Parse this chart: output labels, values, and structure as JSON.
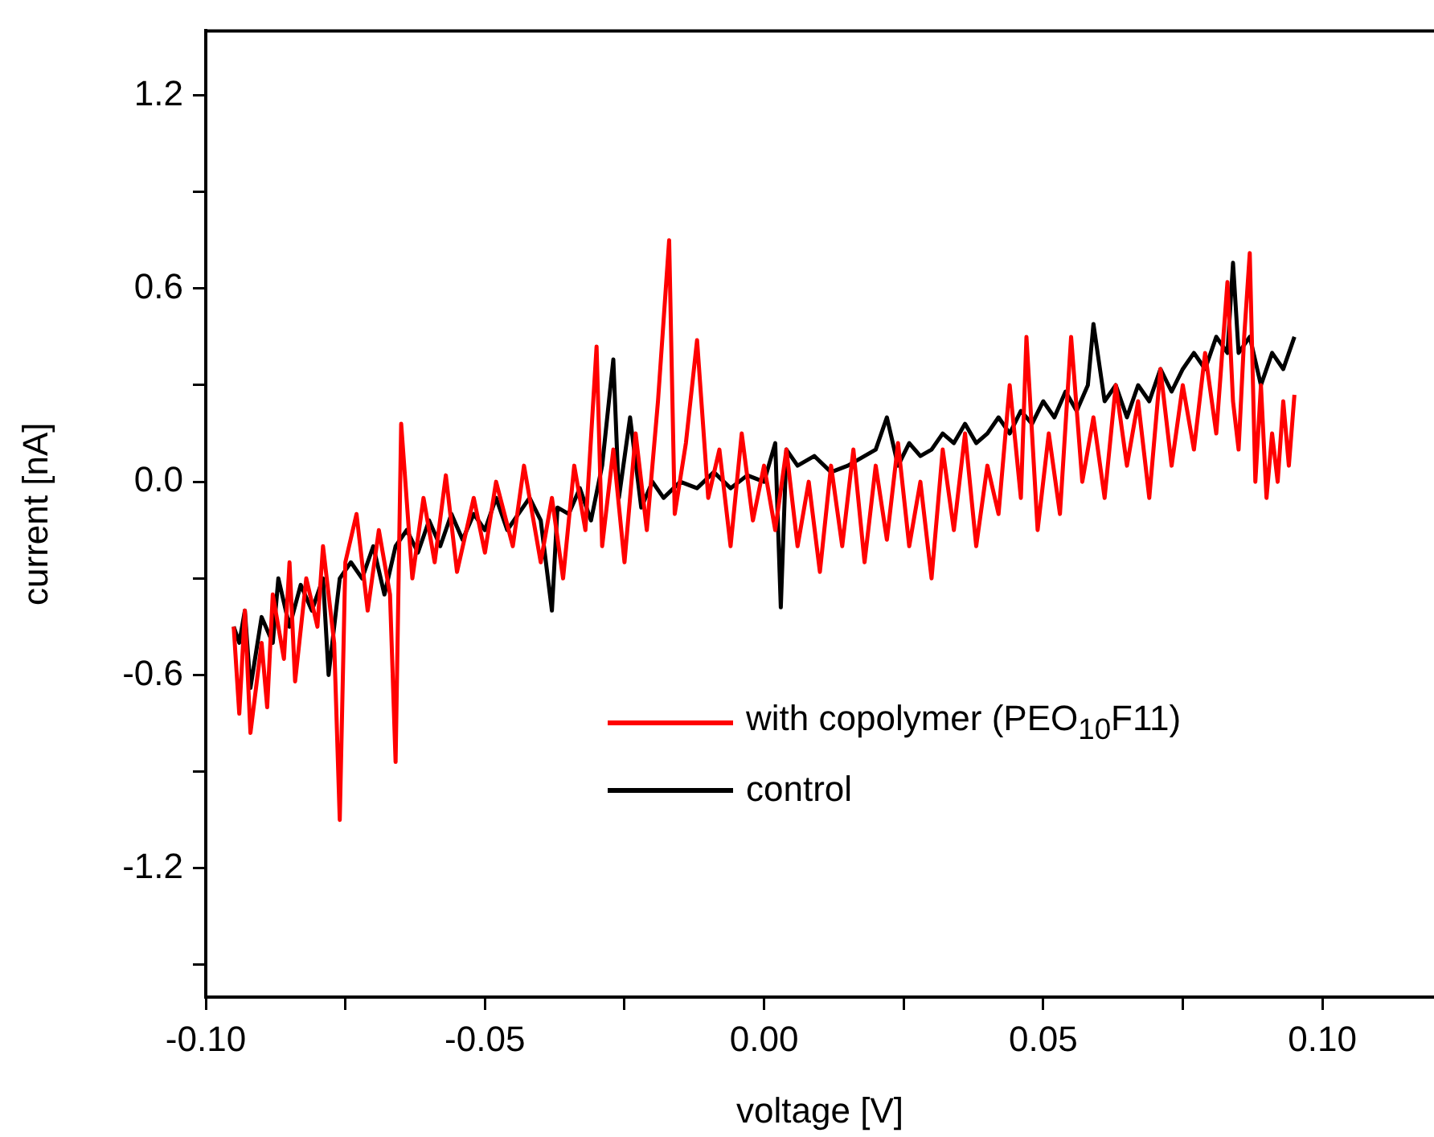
{
  "chart_data": {
    "type": "line",
    "xlabel": "voltage [V]",
    "ylabel": "current [nA]",
    "xlim": [
      -0.1,
      0.12
    ],
    "xticks": [
      {
        "value": -0.1,
        "label": "-0.10"
      },
      {
        "value": -0.075,
        "label": null
      },
      {
        "value": -0.05,
        "label": "-0.05"
      },
      {
        "value": -0.025,
        "label": null
      },
      {
        "value": 0,
        "label": "0.00"
      },
      {
        "value": 0.025,
        "label": null
      },
      0.05,
      {
        "value": 0.075,
        "label": null
      },
      {
        "value": 0.1,
        "label": "0.10"
      }
    ],
    "ylim": [
      -1.6,
      1.4
    ],
    "yticks": [
      {
        "value": -1.5,
        "label": null
      },
      -1.2,
      {
        "value": -0.9,
        "label": null
      },
      -0.6,
      {
        "value": -0.3,
        "label": null
      },
      {
        "value": 0,
        "label": "0.0"
      },
      {
        "value": 0.3,
        "label": null
      },
      0.6,
      {
        "value": 0.9,
        "label": null
      },
      1.2
    ],
    "grid": false,
    "legend": "bottom right",
    "marker": "none",
    "line_style": "solid",
    "series": [
      {
        "name": "with copolymer (PEO$_{10}$F11)",
        "color": "#ff0000",
        "x": [
          -0.095,
          -0.094,
          -0.093,
          -0.092,
          -0.09,
          -0.089,
          -0.088,
          -0.086,
          -0.085,
          -0.084,
          -0.082,
          -0.08,
          -0.079,
          -0.077,
          -0.076,
          -0.075,
          -0.073,
          -0.071,
          -0.069,
          -0.067,
          -0.066,
          -0.065,
          -0.063,
          -0.061,
          -0.059,
          -0.057,
          -0.055,
          -0.052,
          -0.05,
          -0.048,
          -0.045,
          -0.043,
          -0.04,
          -0.038,
          -0.036,
          -0.034,
          -0.032,
          -0.03,
          -0.029,
          -0.027,
          -0.025,
          -0.023,
          -0.021,
          -0.019,
          -0.017,
          -0.016,
          -0.014,
          -0.012,
          -0.01,
          -0.008,
          -0.006,
          -0.004,
          -0.002,
          0,
          0.002,
          0.004,
          0.006,
          0.008,
          0.01,
          0.012,
          0.014,
          0.016,
          0.018,
          0.02,
          0.022,
          0.024,
          0.026,
          0.028,
          0.03,
          0.032,
          0.034,
          0.036,
          0.038,
          0.04,
          0.042,
          0.044,
          0.046,
          0.047,
          0.049,
          0.051,
          0.053,
          0.055,
          0.057,
          0.059,
          0.061,
          0.063,
          0.065,
          0.067,
          0.069,
          0.071,
          0.073,
          0.075,
          0.077,
          0.079,
          0.081,
          0.083,
          0.084,
          0.085,
          0.086,
          0.087,
          0.088,
          0.089,
          0.09,
          0.091,
          0.092,
          0.093,
          0.094,
          0.095
        ],
        "values": [
          -0.45,
          -0.72,
          -0.4,
          -0.78,
          -0.5,
          -0.7,
          -0.35,
          -0.55,
          -0.25,
          -0.62,
          -0.3,
          -0.45,
          -0.2,
          -0.5,
          -1.05,
          -0.25,
          -0.1,
          -0.4,
          -0.15,
          -0.35,
          -0.87,
          0.18,
          -0.3,
          -0.05,
          -0.25,
          0.02,
          -0.28,
          -0.05,
          -0.22,
          0,
          -0.2,
          0.05,
          -0.25,
          -0.05,
          -0.3,
          0.05,
          -0.15,
          0.42,
          -0.2,
          0.1,
          -0.25,
          0.15,
          -0.15,
          0.25,
          0.75,
          -0.1,
          0.12,
          0.44,
          -0.05,
          0.1,
          -0.2,
          0.15,
          -0.12,
          0.05,
          -0.15,
          0.1,
          -0.2,
          0,
          -0.28,
          0.05,
          -0.2,
          0.1,
          -0.25,
          0.05,
          -0.18,
          0.12,
          -0.2,
          0,
          -0.3,
          0.1,
          -0.15,
          0.15,
          -0.2,
          0.05,
          -0.1,
          0.3,
          -0.05,
          0.45,
          -0.15,
          0.15,
          -0.1,
          0.45,
          0,
          0.2,
          -0.05,
          0.3,
          0.05,
          0.25,
          -0.05,
          0.35,
          0.05,
          0.3,
          0.1,
          0.4,
          0.15,
          0.62,
          0.25,
          0.1,
          0.45,
          0.71,
          0,
          0.3,
          -0.05,
          0.15,
          0,
          0.25,
          0.05,
          0.27
        ]
      },
      {
        "name": "control",
        "color": "#000000",
        "x": [
          -0.095,
          -0.094,
          -0.093,
          -0.092,
          -0.09,
          -0.088,
          -0.087,
          -0.085,
          -0.083,
          -0.081,
          -0.079,
          -0.078,
          -0.076,
          -0.074,
          -0.072,
          -0.07,
          -0.068,
          -0.066,
          -0.064,
          -0.062,
          -0.06,
          -0.058,
          -0.056,
          -0.054,
          -0.052,
          -0.05,
          -0.048,
          -0.046,
          -0.044,
          -0.042,
          -0.04,
          -0.038,
          -0.037,
          -0.035,
          -0.033,
          -0.031,
          -0.029,
          -0.027,
          -0.026,
          -0.024,
          -0.022,
          -0.02,
          -0.018,
          -0.015,
          -0.012,
          -0.009,
          -0.006,
          -0.003,
          0,
          0.002,
          0.003,
          0.004,
          0.006,
          0.009,
          0.012,
          0.015,
          0.018,
          0.02,
          0.022,
          0.024,
          0.026,
          0.028,
          0.03,
          0.032,
          0.034,
          0.036,
          0.038,
          0.04,
          0.042,
          0.044,
          0.046,
          0.048,
          0.05,
          0.052,
          0.054,
          0.056,
          0.058,
          0.059,
          0.061,
          0.063,
          0.065,
          0.067,
          0.069,
          0.071,
          0.073,
          0.075,
          0.077,
          0.079,
          0.081,
          0.083,
          0.084,
          0.085,
          0.087,
          0.089,
          0.091,
          0.093,
          0.095
        ],
        "values": [
          -0.45,
          -0.5,
          -0.4,
          -0.64,
          -0.42,
          -0.5,
          -0.3,
          -0.45,
          -0.32,
          -0.4,
          -0.3,
          -0.6,
          -0.3,
          -0.25,
          -0.3,
          -0.2,
          -0.35,
          -0.2,
          -0.15,
          -0.22,
          -0.12,
          -0.2,
          -0.1,
          -0.18,
          -0.1,
          -0.15,
          -0.05,
          -0.15,
          -0.1,
          -0.05,
          -0.12,
          -0.4,
          -0.08,
          -0.1,
          -0.02,
          -0.12,
          0.05,
          0.38,
          -0.05,
          0.2,
          -0.08,
          0,
          -0.05,
          0,
          -0.02,
          0.03,
          -0.02,
          0.02,
          0,
          0.12,
          -0.39,
          0.1,
          0.05,
          0.08,
          0.03,
          0.05,
          0.08,
          0.1,
          0.2,
          0.05,
          0.12,
          0.08,
          0.1,
          0.15,
          0.12,
          0.18,
          0.12,
          0.15,
          0.2,
          0.15,
          0.22,
          0.18,
          0.25,
          0.2,
          0.28,
          0.22,
          0.3,
          0.49,
          0.25,
          0.3,
          0.2,
          0.3,
          0.25,
          0.35,
          0.28,
          0.35,
          0.4,
          0.35,
          0.45,
          0.4,
          0.68,
          0.4,
          0.45,
          0.3,
          0.4,
          0.35,
          0.45
        ]
      }
    ]
  }
}
